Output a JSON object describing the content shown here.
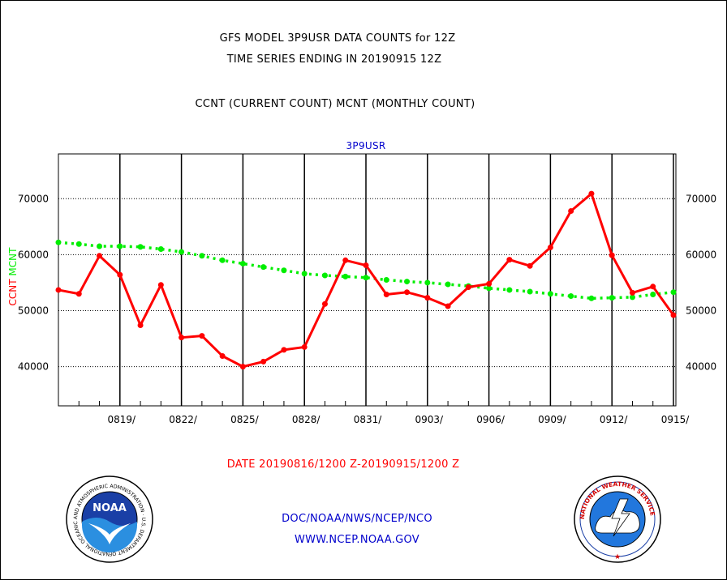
{
  "header": {
    "title_line1": "GFS MODEL 3P9USR DATA COUNTS for 12Z",
    "title_line2": "TIME SERIES ENDING IN 20190915 12Z",
    "subtitle": "CCNT (CURRENT COUNT) MCNT (MONTHLY COUNT)",
    "plot_label": "3P9USR"
  },
  "footer": {
    "date_range": "DATE 20190816/1200 Z-20190915/1200 Z",
    "org": "DOC/NOAA/NWS/NCEP/NCO",
    "url": "WWW.NCEP.NOAA.GOV"
  },
  "logos": {
    "left": {
      "name": "noaa-logo",
      "text": "NOAA",
      "ring_text": "NATIONAL OCEANIC AND ATMOSPHERIC ADMINISTRATION · U.S. DEPARTMENT OF COMMERCE"
    },
    "right": {
      "name": "nws-logo",
      "ring_text": "NATIONAL WEATHER SERVICE"
    }
  },
  "colors": {
    "ccnt": "#ff0000",
    "mcnt": "#00ee00",
    "text_blue": "#0000cc",
    "text_red": "#ff0000"
  },
  "chart_data": {
    "type": "line",
    "title": "GFS MODEL 3P9USR DATA COUNTS for 12Z",
    "ylabel_left": [
      "CCNT",
      "MCNT"
    ],
    "ylim": [
      33000,
      78000
    ],
    "yticks": [
      40000,
      50000,
      60000,
      70000
    ],
    "ytick_labels": [
      "40000",
      "50000",
      "60000",
      "70000"
    ],
    "x_day_range": [
      16,
      46
    ],
    "xticks_day": [
      19,
      22,
      25,
      28,
      31,
      34,
      37,
      40,
      43,
      46
    ],
    "xtick_labels": [
      "0819/",
      "0822/",
      "0825/",
      "0828/",
      "0831/",
      "0903/",
      "0906/",
      "0909/",
      "0912/",
      "0915/"
    ],
    "grid": true,
    "series": [
      {
        "name": "CCNT",
        "day": [
          16,
          17,
          18,
          19,
          20,
          21,
          22,
          23,
          24,
          25,
          26,
          27,
          28,
          29,
          30,
          31,
          32,
          33,
          34,
          35,
          36,
          37,
          38,
          39,
          40,
          41,
          42,
          43,
          44,
          45,
          46
        ],
        "values": [
          53700,
          53000,
          59800,
          56400,
          47400,
          54600,
          45200,
          45500,
          41900,
          40000,
          40900,
          43000,
          43500,
          51200,
          59000,
          58100,
          52900,
          53300,
          52300,
          50800,
          54200,
          54800,
          59100,
          58000,
          61300,
          67800,
          70900,
          59900,
          53200,
          54300,
          49200
        ]
      },
      {
        "name": "MCNT",
        "day": [
          16,
          17,
          18,
          19,
          20,
          21,
          22,
          23,
          24,
          25,
          26,
          27,
          28,
          29,
          30,
          31,
          32,
          33,
          34,
          35,
          36,
          37,
          38,
          39,
          40,
          41,
          42,
          43,
          44,
          45,
          46
        ],
        "values": [
          62200,
          61900,
          61500,
          61500,
          61400,
          61000,
          60500,
          59800,
          59000,
          58400,
          57800,
          57200,
          56600,
          56300,
          56100,
          55900,
          55500,
          55200,
          55000,
          54700,
          54400,
          54000,
          53700,
          53400,
          53000,
          52600,
          52200,
          52300,
          52400,
          52900,
          53300
        ]
      }
    ]
  }
}
